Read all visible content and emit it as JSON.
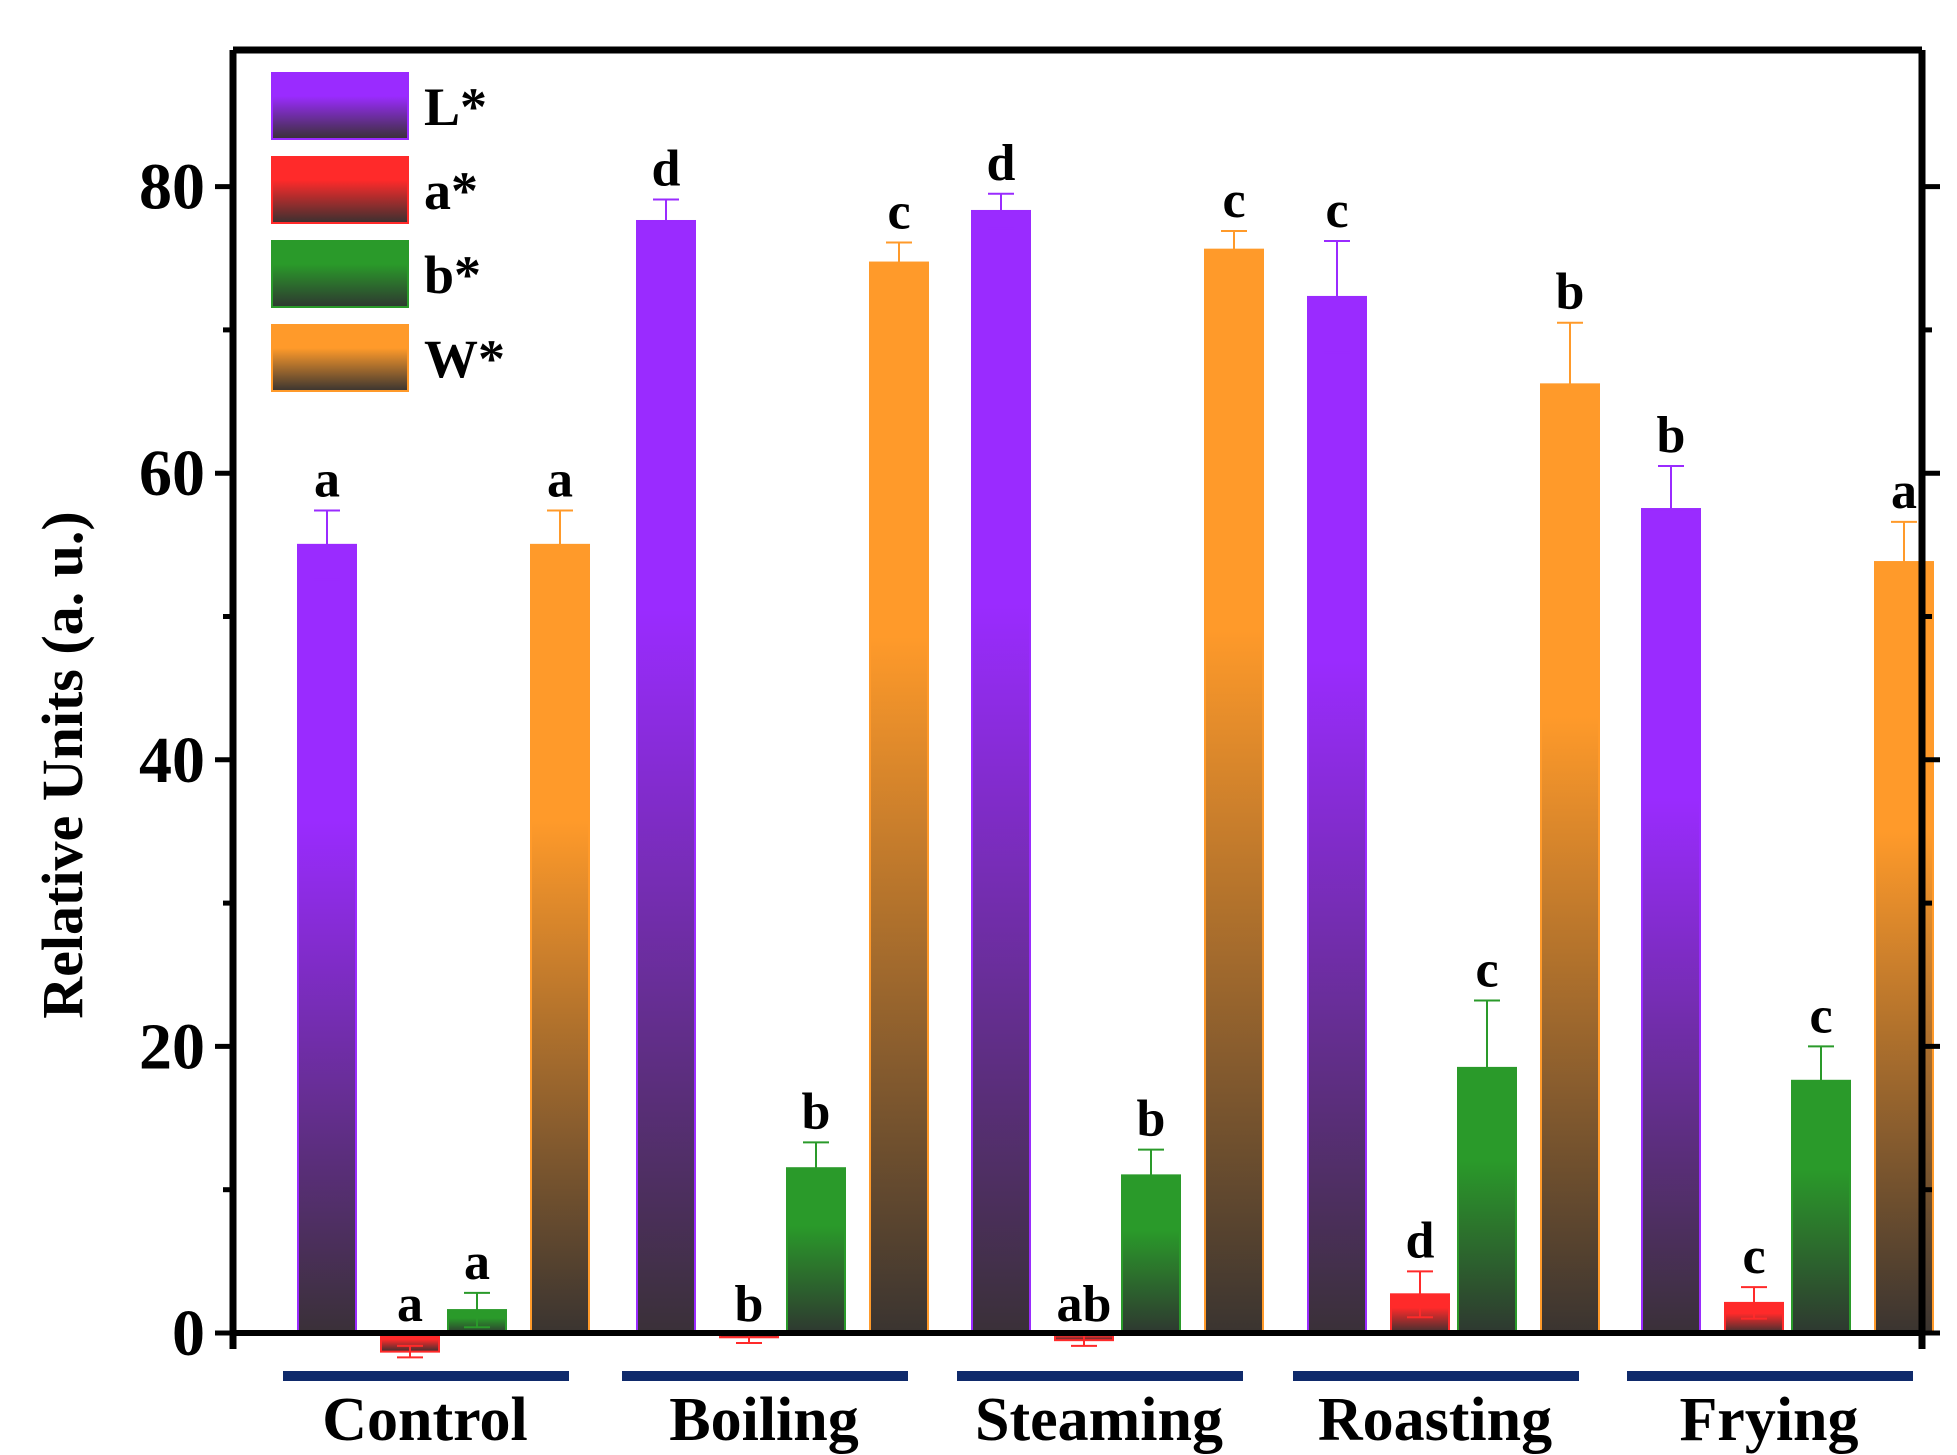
{
  "chart_data": {
    "type": "bar",
    "title": "",
    "xlabel": "",
    "ylabel": "Relative Units (a. u.)",
    "ylim": [
      -2,
      90
    ],
    "yticks": [
      0,
      20,
      40,
      60,
      80
    ],
    "categories": [
      "Control",
      "Boiling",
      "Steaming",
      "Roasting",
      "Frying"
    ],
    "legend_position": "top-left",
    "series": [
      {
        "name": "L*",
        "color_top": "#9a2bff",
        "color_bottom": "#3a3038",
        "values": [
          55.0,
          77.6,
          78.3,
          72.3,
          57.5
        ],
        "errors": [
          2.4,
          1.5,
          1.2,
          3.9,
          3.0
        ],
        "letters": [
          "a",
          "d",
          "d",
          "c",
          "b"
        ]
      },
      {
        "name": "a*",
        "color_top": "#ff2a2a",
        "color_bottom": "#3a3030",
        "values": [
          -1.3,
          -0.3,
          -0.5,
          2.7,
          2.1
        ],
        "errors": [
          0.4,
          0.4,
          0.4,
          1.6,
          1.1
        ],
        "letters": [
          "a",
          "b",
          "ab",
          "d",
          "c"
        ]
      },
      {
        "name": "b*",
        "color_top": "#2a9a2a",
        "color_bottom": "#2e3830",
        "values": [
          1.6,
          11.5,
          11.0,
          18.5,
          17.6
        ],
        "errors": [
          1.2,
          1.8,
          1.8,
          4.7,
          2.4
        ],
        "letters": [
          "a",
          "b",
          "b",
          "c",
          "c"
        ]
      },
      {
        "name": "W*",
        "color_top": "#ff9a2a",
        "color_bottom": "#3a3430",
        "values": [
          55.0,
          74.7,
          75.6,
          66.2,
          53.8
        ],
        "errors": [
          2.4,
          1.4,
          1.3,
          4.3,
          2.8
        ],
        "letters": [
          "a",
          "c",
          "c",
          "b",
          "a"
        ]
      }
    ],
    "group_bar_color": "#0f2a6b"
  }
}
